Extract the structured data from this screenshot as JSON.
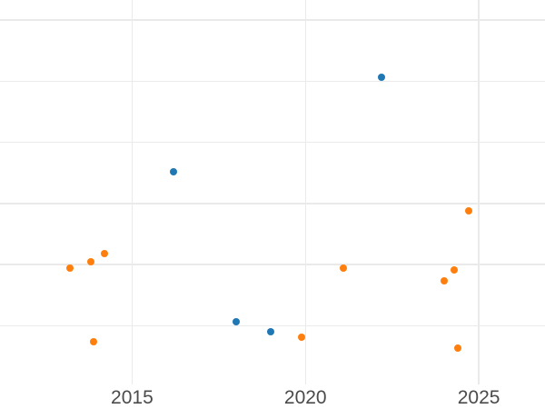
{
  "chart": {
    "background_color": "#ffffff",
    "grid_color": "#eaeaea",
    "tick_label_color": "#4b4b4b"
  },
  "chart_data": {
    "type": "scatter",
    "title": "",
    "xlabel": "",
    "ylabel": "",
    "grid": true,
    "legend": "none",
    "x_axis": {
      "tick_labels": [
        "2015",
        "2020",
        "2025"
      ],
      "tick_values": [
        2015,
        2020,
        2025
      ],
      "range": [
        2011.19,
        2026.91
      ]
    },
    "y_axis": {
      "tick_labels_visible": false,
      "gridline_values": [
        1,
        2,
        3,
        4,
        5,
        6
      ],
      "range": [
        0.04,
        6.33
      ],
      "note": "y-axis tick labels are cropped outside the visible image; values expressed in gridline units"
    },
    "series": [
      {
        "name": "blue",
        "color": "#1f77b4",
        "points": [
          {
            "x": 2016.2,
            "y": 3.52
          },
          {
            "x": 2018.0,
            "y": 1.07
          },
          {
            "x": 2019.0,
            "y": 0.9
          },
          {
            "x": 2022.2,
            "y": 5.06
          }
        ]
      },
      {
        "name": "orange",
        "color": "#ff7f0e",
        "points": [
          {
            "x": 2013.2,
            "y": 1.95
          },
          {
            "x": 2013.8,
            "y": 2.05
          },
          {
            "x": 2014.2,
            "y": 2.18
          },
          {
            "x": 2013.9,
            "y": 0.74
          },
          {
            "x": 2019.9,
            "y": 0.81
          },
          {
            "x": 2021.1,
            "y": 1.95
          },
          {
            "x": 2024.0,
            "y": 1.73
          },
          {
            "x": 2024.3,
            "y": 1.92
          },
          {
            "x": 2024.7,
            "y": 2.88
          },
          {
            "x": 2024.4,
            "y": 0.64
          }
        ]
      }
    ]
  }
}
